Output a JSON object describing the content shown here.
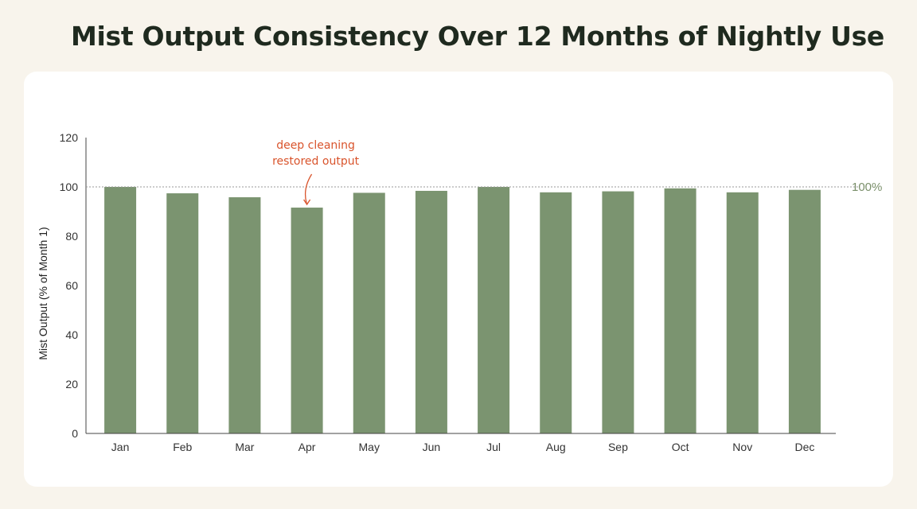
{
  "title": "Mist Output Consistency Over 12 Months of Nightly Use",
  "chart_data": {
    "type": "bar",
    "title": "Mist Output Consistency Over 12 Months of Nightly Use",
    "categories": [
      "Jan",
      "Feb",
      "Mar",
      "Apr",
      "May",
      "Jun",
      "Jul",
      "Aug",
      "Sep",
      "Oct",
      "Nov",
      "Dec"
    ],
    "values": [
      100,
      97.4,
      95.8,
      91.6,
      97.6,
      98.4,
      100,
      97.8,
      98.2,
      99.4,
      97.8,
      98.8
    ],
    "xlabel": "",
    "ylabel": "Mist Output (% of Month 1)",
    "ylim": [
      0,
      120
    ],
    "yticks": [
      0,
      20,
      40,
      60,
      80,
      100,
      120
    ],
    "grid": false,
    "bar_color": "#7b9470",
    "reference_line": {
      "value": 100,
      "label": "100%",
      "style": "dotted"
    },
    "annotation": {
      "target": "Apr",
      "lines": [
        "deep cleaning",
        "restored output"
      ],
      "color": "#d9542c"
    }
  }
}
